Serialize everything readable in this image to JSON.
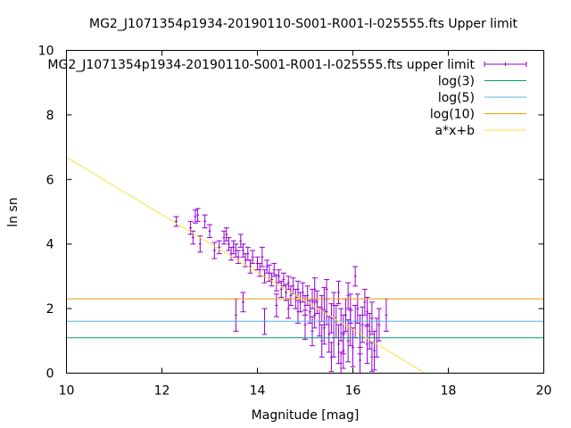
{
  "chart_data": {
    "type": "scatter",
    "title": "MG2_J1071354p1934-20190110-S001-R001-I-025555.fts Upper limit",
    "xlabel": "Magnitude [mag]",
    "ylabel": "ln sn",
    "xlim": [
      10,
      20
    ],
    "ylim": [
      0,
      10
    ],
    "xticks": [
      10,
      12,
      14,
      16,
      18,
      20
    ],
    "yticks": [
      0,
      2,
      4,
      6,
      8,
      10
    ],
    "grid": false,
    "legend_position": "top-right",
    "series": [
      {
        "name": "MG2_J1071354p1934-20190110-S001-R001-I-025555.fts upper limit",
        "kind": "errorbars",
        "color": "#9400d3",
        "points": [
          [
            12.3,
            4.7,
            0.15
          ],
          [
            12.6,
            4.5,
            0.2
          ],
          [
            12.65,
            4.2,
            0.2
          ],
          [
            12.7,
            4.85,
            0.2
          ],
          [
            12.75,
            4.9,
            0.2
          ],
          [
            12.8,
            4.0,
            0.25
          ],
          [
            12.9,
            4.7,
            0.2
          ],
          [
            13.0,
            4.4,
            0.2
          ],
          [
            13.1,
            3.8,
            0.25
          ],
          [
            13.2,
            3.9,
            0.2
          ],
          [
            13.3,
            4.2,
            0.2
          ],
          [
            13.35,
            4.3,
            0.2
          ],
          [
            13.4,
            4.0,
            0.2
          ],
          [
            13.45,
            3.7,
            0.2
          ],
          [
            13.5,
            3.9,
            0.2
          ],
          [
            13.55,
            3.8,
            0.2
          ],
          [
            13.6,
            3.6,
            0.2
          ],
          [
            13.65,
            4.1,
            0.2
          ],
          [
            13.7,
            3.8,
            0.2
          ],
          [
            13.75,
            3.5,
            0.2
          ],
          [
            13.8,
            3.7,
            0.2
          ],
          [
            13.85,
            3.3,
            0.2
          ],
          [
            13.9,
            3.6,
            0.2
          ],
          [
            14.0,
            3.4,
            0.2
          ],
          [
            14.05,
            3.2,
            0.2
          ],
          [
            14.1,
            3.6,
            0.3
          ],
          [
            14.15,
            3.0,
            0.2
          ],
          [
            14.2,
            3.3,
            0.2
          ],
          [
            14.25,
            3.1,
            0.25
          ],
          [
            14.3,
            2.9,
            0.2
          ],
          [
            14.35,
            3.2,
            0.2
          ],
          [
            14.4,
            2.8,
            0.25
          ],
          [
            14.45,
            3.0,
            0.2
          ],
          [
            14.5,
            2.6,
            0.25
          ],
          [
            14.55,
            2.9,
            0.2
          ],
          [
            14.6,
            2.5,
            0.25
          ],
          [
            14.65,
            2.8,
            0.2
          ],
          [
            14.7,
            2.4,
            0.3
          ],
          [
            14.75,
            2.7,
            0.25
          ],
          [
            14.8,
            2.3,
            0.3
          ],
          [
            14.85,
            2.6,
            0.25
          ],
          [
            14.9,
            2.2,
            0.3
          ],
          [
            14.95,
            2.5,
            0.3
          ],
          [
            15.0,
            2.1,
            0.3
          ],
          [
            15.05,
            2.4,
            0.3
          ],
          [
            15.1,
            1.9,
            0.35
          ],
          [
            15.15,
            2.3,
            0.3
          ],
          [
            15.2,
            1.8,
            0.4
          ],
          [
            15.25,
            2.2,
            0.35
          ],
          [
            15.3,
            1.6,
            0.45
          ],
          [
            15.35,
            2.0,
            0.4
          ],
          [
            15.4,
            1.4,
            0.5
          ],
          [
            15.45,
            1.9,
            0.4
          ],
          [
            15.5,
            1.2,
            0.55
          ],
          [
            15.55,
            1.7,
            0.45
          ],
          [
            15.6,
            1.1,
            0.6
          ],
          [
            15.65,
            1.6,
            0.5
          ],
          [
            15.7,
            0.9,
            0.6
          ],
          [
            15.75,
            1.5,
            0.5
          ],
          [
            15.8,
            1.2,
            0.6
          ],
          [
            15.85,
            1.8,
            0.5
          ],
          [
            15.9,
            1.0,
            0.65
          ],
          [
            15.95,
            1.4,
            0.55
          ],
          [
            16.0,
            0.8,
            0.6
          ],
          [
            16.05,
            1.6,
            0.5
          ],
          [
            16.1,
            2.0,
            0.45
          ],
          [
            16.15,
            1.2,
            0.6
          ],
          [
            16.2,
            1.5,
            0.55
          ],
          [
            16.3,
            0.9,
            0.6
          ],
          [
            16.35,
            1.3,
            0.55
          ],
          [
            16.4,
            1.7,
            0.5
          ],
          [
            16.45,
            0.7,
            0.6
          ],
          [
            16.5,
            1.1,
            0.6
          ],
          [
            16.55,
            1.5,
            0.5
          ],
          [
            16.7,
            1.8,
            0.5
          ],
          [
            13.55,
            1.8,
            0.5
          ],
          [
            13.7,
            2.2,
            0.3
          ],
          [
            14.15,
            1.6,
            0.4
          ],
          [
            14.4,
            2.1,
            0.35
          ],
          [
            15.0,
            1.5,
            0.45
          ],
          [
            15.2,
            2.6,
            0.35
          ],
          [
            15.4,
            2.3,
            0.35
          ],
          [
            15.6,
            2.1,
            0.4
          ],
          [
            15.8,
            0.7,
            0.55
          ],
          [
            16.05,
            3.0,
            0.3
          ],
          [
            16.25,
            2.2,
            0.4
          ],
          [
            15.9,
            2.4,
            0.4
          ],
          [
            15.35,
            1.0,
            0.5
          ],
          [
            15.55,
            0.5,
            0.45
          ],
          [
            16.15,
            0.4,
            0.4
          ],
          [
            15.75,
            0.3,
            0.35
          ],
          [
            15.15,
            1.3,
            0.45
          ],
          [
            14.85,
            1.9,
            0.35
          ],
          [
            14.65,
            2.0,
            0.3
          ],
          [
            16.4,
            0.5,
            0.45
          ],
          [
            15.95,
            2.0,
            0.45
          ],
          [
            15.45,
            2.6,
            0.3
          ],
          [
            15.7,
            2.5,
            0.35
          ],
          [
            16.3,
            1.9,
            0.45
          ]
        ]
      },
      {
        "name": "log(3)",
        "kind": "hline",
        "value": 1.0986,
        "color": "#009e73"
      },
      {
        "name": "log(5)",
        "kind": "hline",
        "value": 1.6094,
        "color": "#56b4e9"
      },
      {
        "name": "log(10)",
        "kind": "hline",
        "value": 2.3026,
        "color": "#e69f00"
      },
      {
        "name": "a*x+b",
        "kind": "fit",
        "a": -0.89,
        "b": 15.59,
        "color": "#f0e442"
      }
    ]
  }
}
